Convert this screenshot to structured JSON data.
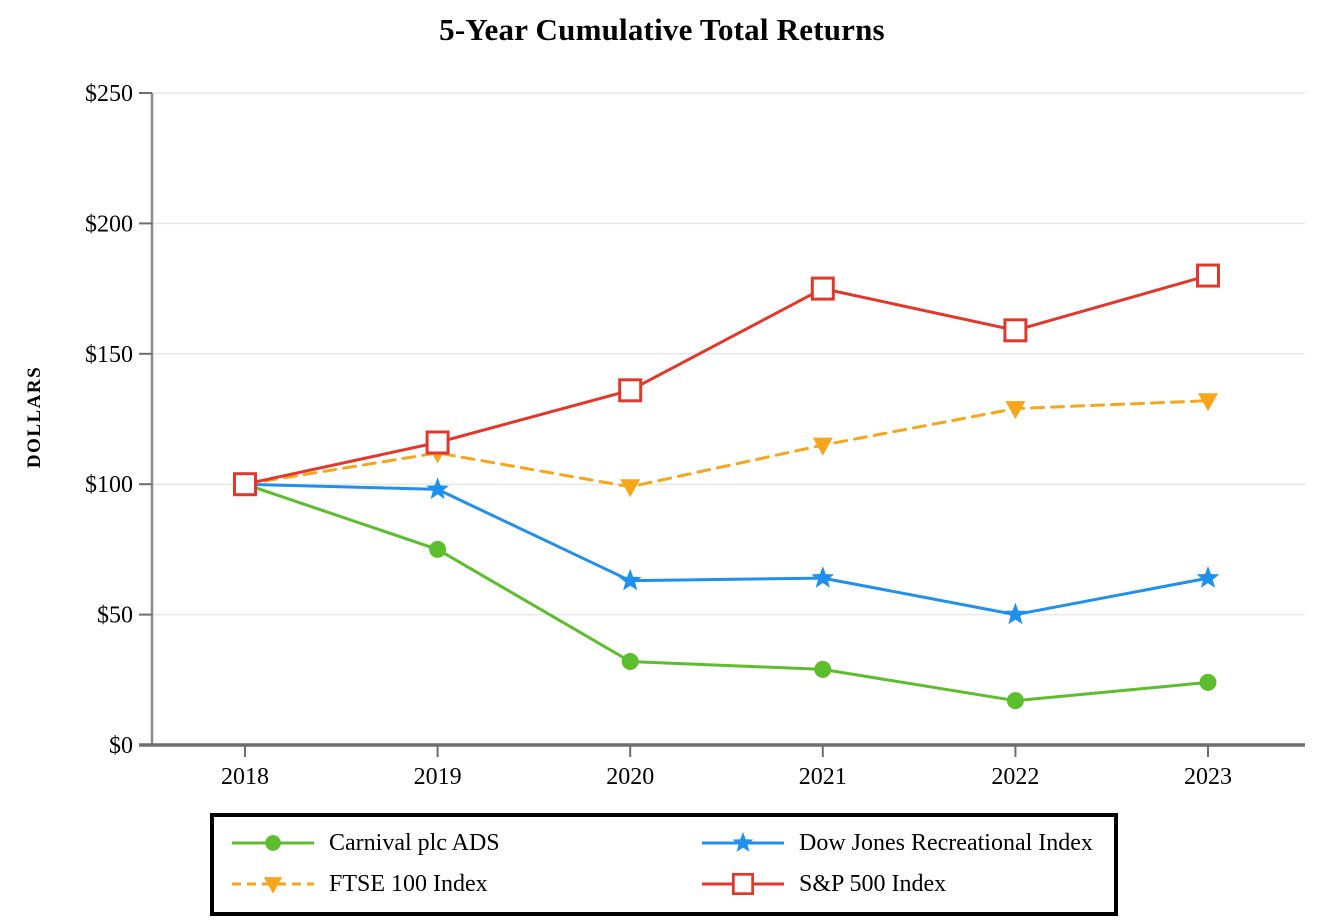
{
  "chart_data": {
    "type": "line",
    "title": "5-Year Cumulative Total Returns",
    "xlabel": "",
    "ylabel": "DOLLARS",
    "x": [
      "2018",
      "2019",
      "2020",
      "2021",
      "2022",
      "2023"
    ],
    "ylim": [
      0,
      250
    ],
    "y_tick_step": 50,
    "y_tick_prefix": "$",
    "y_tick_labels": [
      "$0",
      "$50",
      "$100",
      "$150",
      "$200",
      "$250"
    ],
    "grid": "horizontal-gridlines-on",
    "legend_position": "bottom-boxed-two-columns",
    "series": [
      {
        "name": "Carnival plc ADS",
        "color": "#5CBE2D",
        "marker": "circle",
        "line_style": "solid",
        "values": [
          100,
          75,
          32,
          29,
          17,
          24
        ]
      },
      {
        "name": "Dow Jones Recreational Index",
        "color": "#2090EE",
        "marker": "star",
        "line_style": "solid",
        "values": [
          100,
          98,
          63,
          64,
          50,
          64
        ]
      },
      {
        "name": "FTSE 100 Index",
        "color": "#F7A51B",
        "marker": "triangle-down",
        "line_style": "dashed",
        "values": [
          100,
          112,
          99,
          115,
          129,
          132
        ]
      },
      {
        "name": "S&P 500 Index",
        "color": "#E2382C",
        "marker": "square-open",
        "line_style": "solid",
        "values": [
          100,
          116,
          136,
          175,
          159,
          180
        ]
      }
    ],
    "colors": {
      "gridline": "#E8E8E8",
      "y_axis": "#8A8A8A",
      "x_axis": "#6E6E6E",
      "tick": "#6E6E6E",
      "text": "#000000",
      "legend_border": "#000000",
      "background": "#FFFFFF"
    }
  }
}
